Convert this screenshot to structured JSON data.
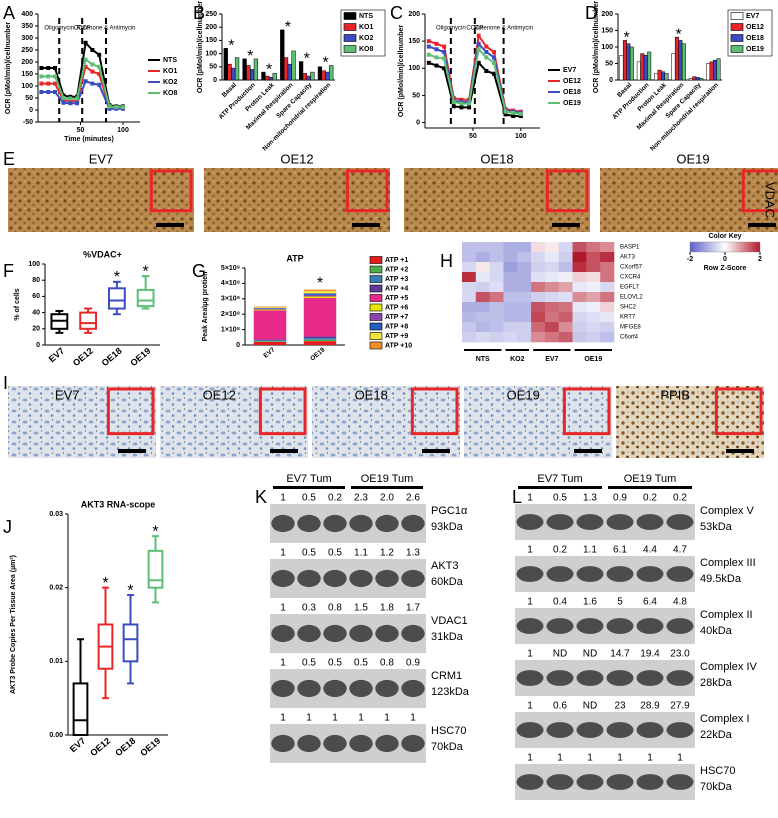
{
  "chart_data": [
    {
      "type": "line",
      "panel": "A",
      "ylabel": "OCR (pMol/min)/cellnumber",
      "xlabel": "Time (minutes)",
      "xlim": [
        0,
        120
      ],
      "xticks": [
        50,
        100
      ],
      "ylim": [
        -50,
        400
      ],
      "yticks": [
        -50,
        0,
        50,
        100,
        150,
        200,
        250,
        300,
        350,
        400
      ],
      "markers": [
        {
          "label": "Oligomycin",
          "x": 25
        },
        {
          "label": "CCCP",
          "x": 52
        },
        {
          "label": "Rotenone & Antimycin",
          "x": 80
        }
      ],
      "x": [
        4,
        12,
        20,
        30,
        38,
        46,
        56,
        64,
        72,
        84,
        92,
        100
      ],
      "series": [
        {
          "name": "NTS",
          "color": "#000000",
          "values": [
            175,
            175,
            175,
            60,
            55,
            55,
            280,
            250,
            230,
            20,
            15,
            15
          ]
        },
        {
          "name": "KO1",
          "color": "#e8262a",
          "values": [
            110,
            110,
            110,
            40,
            38,
            38,
            180,
            160,
            150,
            10,
            8,
            8
          ]
        },
        {
          "name": "KO2",
          "color": "#3b4cc0",
          "values": [
            75,
            75,
            75,
            30,
            28,
            28,
            120,
            110,
            105,
            5,
            5,
            5
          ]
        },
        {
          "name": "KO8",
          "color": "#5dbf73",
          "values": [
            140,
            140,
            140,
            50,
            48,
            48,
            210,
            190,
            180,
            15,
            12,
            12
          ]
        }
      ]
    },
    {
      "type": "bar",
      "panel": "B",
      "ylabel": "OCR (pMol/min)/cellnumber",
      "ylim": [
        0,
        250
      ],
      "yticks": [
        0,
        50,
        100,
        150,
        200,
        250
      ],
      "categories": [
        "Basal",
        "ATP Production",
        "Proton Leak",
        "Maximal Respiration",
        "Spare Capacity",
        "Non-mitochondrial respiration"
      ],
      "stars": [
        "*",
        "*",
        "*",
        "*",
        "*",
        "*"
      ],
      "series": [
        {
          "name": "NTS",
          "color": "#000000",
          "values": [
            120,
            80,
            30,
            190,
            70,
            50
          ]
        },
        {
          "name": "KO1",
          "color": "#e8262a",
          "values": [
            60,
            55,
            15,
            85,
            25,
            35
          ]
        },
        {
          "name": "KO2",
          "color": "#3b4cc0",
          "values": [
            45,
            40,
            10,
            60,
            15,
            30
          ]
        },
        {
          "name": "KO8",
          "color": "#5dbf73",
          "values": [
            85,
            80,
            25,
            110,
            30,
            55
          ]
        }
      ]
    },
    {
      "type": "line",
      "panel": "C",
      "ylabel": "OCR (pMol/min)/cellnumber",
      "xlim": [
        0,
        120
      ],
      "xticks": [
        50,
        100
      ],
      "ylim": [
        -10,
        200
      ],
      "yticks": [
        0,
        50,
        100,
        150,
        200
      ],
      "markers": [
        {
          "label": "Oligomycin",
          "x": 27
        },
        {
          "label": "CCCP",
          "x": 52
        },
        {
          "label": "Rotenone & Antimycin",
          "x": 82
        }
      ],
      "x": [
        4,
        12,
        20,
        30,
        38,
        46,
        56,
        64,
        72,
        84,
        92,
        100
      ],
      "series": [
        {
          "name": "EV7",
          "color": "#000000",
          "values": [
            110,
            105,
            100,
            30,
            28,
            28,
            110,
            95,
            90,
            15,
            12,
            12
          ]
        },
        {
          "name": "OE12",
          "color": "#e8262a",
          "values": [
            150,
            145,
            140,
            45,
            42,
            42,
            160,
            140,
            130,
            25,
            22,
            20
          ]
        },
        {
          "name": "OE18",
          "color": "#3b4cc0",
          "values": [
            140,
            135,
            130,
            40,
            38,
            38,
            145,
            130,
            120,
            22,
            20,
            18
          ]
        },
        {
          "name": "OE19",
          "color": "#5dbf73",
          "values": [
            125,
            120,
            118,
            38,
            35,
            35,
            135,
            120,
            110,
            20,
            18,
            16
          ]
        }
      ]
    },
    {
      "type": "bar",
      "panel": "D",
      "ylabel": "OCR (pMol/min)/cellnumber",
      "ylim": [
        0,
        200
      ],
      "yticks": [
        0,
        50,
        100,
        150,
        200
      ],
      "categories": [
        "Basal",
        "ATP Production",
        "Proton Leak",
        "Maximal Respiration",
        "Spare Capacity",
        "Non-mitochondrial respiration"
      ],
      "stars": [
        "*",
        null,
        null,
        "*",
        null,
        null
      ],
      "series": [
        {
          "name": "EV7",
          "color": "#ffffff",
          "values": [
            75,
            55,
            20,
            80,
            5,
            50
          ]
        },
        {
          "name": "OE12",
          "color": "#e8262a",
          "values": [
            120,
            80,
            30,
            130,
            10,
            55
          ]
        },
        {
          "name": "OE18",
          "color": "#3b4cc0",
          "values": [
            110,
            75,
            25,
            120,
            8,
            60
          ]
        },
        {
          "name": "OE19",
          "color": "#5dbf73",
          "values": [
            100,
            85,
            20,
            110,
            5,
            65
          ]
        }
      ]
    },
    {
      "type": "box",
      "panel": "F",
      "title": "%VDAC+",
      "ylabel": "% of cells",
      "ylim": [
        0,
        100
      ],
      "yticks": [
        0,
        20,
        40,
        60,
        80,
        100
      ],
      "categories": [
        "EV7",
        "OE12",
        "OE18",
        "OE19"
      ],
      "colors": [
        "#000000",
        "#e8262a",
        "#3b4cc0",
        "#5dbf73"
      ],
      "stars": [
        null,
        null,
        "*",
        "*"
      ],
      "boxes": [
        {
          "min": 15,
          "q1": 20,
          "median": 30,
          "q3": 38,
          "max": 42
        },
        {
          "min": 15,
          "q1": 20,
          "median": 27,
          "q3": 40,
          "max": 45
        },
        {
          "min": 38,
          "q1": 45,
          "median": 55,
          "q3": 70,
          "max": 78
        },
        {
          "min": 45,
          "q1": 48,
          "median": 55,
          "q3": 68,
          "max": 85
        }
      ]
    },
    {
      "type": "stacked",
      "panel": "G",
      "title": "ATP",
      "ylabel": "Peak Area\\μg protien",
      "ylim": [
        0,
        500000000
      ],
      "yticks": [
        0,
        {
          "value": 100000000,
          "label": "1×10⁸"
        },
        {
          "value": 200000000,
          "label": "2×10⁸"
        },
        {
          "value": 300000000,
          "label": "3×10⁸"
        },
        {
          "value": 400000000,
          "label": "4×10⁸"
        },
        {
          "value": 500000000,
          "label": "5×10⁸"
        }
      ],
      "categories": [
        "EV7",
        "OE19"
      ],
      "stars": [
        null,
        "*"
      ],
      "series": [
        {
          "name": "ATP +1",
          "color": "#e41a1c",
          "values": [
            20000000,
            25000000
          ]
        },
        {
          "name": "ATP +2",
          "color": "#4daf4a",
          "values": [
            5000000,
            10000000
          ]
        },
        {
          "name": "ATP +3",
          "color": "#377eb8",
          "values": [
            5000000,
            10000000
          ]
        },
        {
          "name": "ATP +4",
          "color": "#5e3c99",
          "values": [
            5000000,
            10000000
          ]
        },
        {
          "name": "ATP +5",
          "color": "#e7298a",
          "values": [
            190000000,
            250000000
          ]
        },
        {
          "name": "ATP +6",
          "color": "#e6e600",
          "values": [
            5000000,
            10000000
          ]
        },
        {
          "name": "ATP +7",
          "color": "#8e44ad",
          "values": [
            5000000,
            10000000
          ]
        },
        {
          "name": "ATP +8",
          "color": "#1f5fbf",
          "values": [
            5000000,
            10000000
          ]
        },
        {
          "name": "ATP +9",
          "color": "#f0e442",
          "values": [
            5000000,
            15000000
          ]
        },
        {
          "name": "ATP +10",
          "color": "#f28e2b",
          "values": [
            5000000,
            10000000
          ]
        }
      ]
    },
    {
      "type": "heatmap",
      "panel": "H",
      "key_title": "Color Key",
      "key_label": "Row Z-Score",
      "zlim": [
        -2,
        2
      ],
      "zticks": [
        -2,
        0,
        2
      ],
      "colors": [
        "#5b5fc7",
        "#ffffff",
        "#b2182b"
      ],
      "rows": [
        "BASP1",
        "AKT3",
        "CXorf57",
        "CXCR4",
        "EGFL7",
        "ELOVL2",
        "SHC2",
        "KRT7",
        "MFGE8",
        "C6orf4"
      ],
      "columns": [
        "NTS",
        "NTS",
        "NTS",
        "KO2",
        "KO2",
        "EV7",
        "EV7",
        "EV7",
        "OE19",
        "OE19",
        "OE19"
      ],
      "values": [
        [
          -0.8,
          -0.8,
          -0.8,
          -1,
          -1,
          0.3,
          0.2,
          -0.5,
          1.5,
          1.2,
          1.0
        ],
        [
          -0.8,
          -1,
          -0.8,
          -1,
          -0.8,
          -0.5,
          -0.3,
          -0.6,
          2,
          1.5,
          1.8
        ],
        [
          -0.5,
          0.2,
          -0.5,
          -1.2,
          -1,
          -0.6,
          -0.5,
          -0.8,
          1.8,
          1.5,
          1.2
        ],
        [
          1.8,
          -0.3,
          -0.5,
          -1,
          -1,
          -0.4,
          -0.3,
          -0.2,
          0.4,
          0.3,
          1.2
        ],
        [
          -0.5,
          -0.6,
          -0.4,
          -1,
          -1,
          1.2,
          1.0,
          0.8,
          -0.3,
          -0.2,
          -0.5
        ],
        [
          -0.5,
          1.5,
          1.2,
          -0.8,
          -0.8,
          -0.6,
          -0.5,
          -0.4,
          1.0,
          0.8,
          1.2
        ],
        [
          -1,
          -1,
          -0.8,
          -0.9,
          -0.9,
          1.5,
          1.3,
          1.2,
          -0.3,
          -0.2,
          0.4
        ],
        [
          -0.9,
          -0.8,
          -0.8,
          -0.9,
          -0.9,
          1.6,
          1.2,
          1.4,
          -0.5,
          -0.4,
          -0.3
        ],
        [
          -0.7,
          -0.9,
          -0.8,
          -0.6,
          -0.6,
          1.3,
          1.6,
          1.0,
          -0.6,
          -0.5,
          -0.6
        ],
        [
          -0.6,
          -0.5,
          -0.6,
          -0.5,
          -0.6,
          1.0,
          1.2,
          1.4,
          -0.7,
          -0.6,
          -0.8
        ]
      ]
    },
    {
      "type": "box",
      "panel": "J",
      "title": "AKT3 RNA-scope",
      "ylabel": "AKT3 Probe Copies Per Tissue Area (µm²)",
      "ylim": [
        0,
        0.03
      ],
      "yticks": [
        {
          "value": 0,
          "label": "0.00"
        },
        {
          "value": 0.01,
          "label": "0.01"
        },
        {
          "value": 0.02,
          "label": "0.02"
        },
        {
          "value": 0.03,
          "label": "0.03"
        }
      ],
      "categories": [
        "EV7",
        "OE12",
        "OE18",
        "OE19"
      ],
      "colors": [
        "#000000",
        "#e8262a",
        "#3b4cc0",
        "#5dbf73"
      ],
      "stars": [
        null,
        "*",
        "*",
        "*"
      ],
      "boxes": [
        {
          "min": 0,
          "q1": 0,
          "median": 0.002,
          "q3": 0.007,
          "max": 0.013
        },
        {
          "min": 0.005,
          "q1": 0.009,
          "median": 0.012,
          "q3": 0.015,
          "max": 0.02
        },
        {
          "min": 0.007,
          "q1": 0.01,
          "median": 0.013,
          "q3": 0.015,
          "max": 0.019
        },
        {
          "min": 0.018,
          "q1": 0.02,
          "median": 0.021,
          "q3": 0.025,
          "max": 0.027
        }
      ]
    }
  ],
  "panels": {
    "E": {
      "panel": "E",
      "images": [
        "EV7",
        "OE12",
        "OE18",
        "OE19"
      ],
      "stain": "VDAC"
    },
    "I": {
      "panel": "I",
      "images": [
        "EV7",
        "OE12",
        "OE18",
        "OE19",
        "PPIB"
      ]
    },
    "K": {
      "panel": "K",
      "groups": [
        "EV7 Tum",
        "OE19 Tum"
      ],
      "rows": [
        {
          "name": "PGC1α",
          "size": "93kDa",
          "values": [
            "1",
            "0.5",
            "0.2",
            "2.3",
            "2.0",
            "2.6"
          ]
        },
        {
          "name": "AKT3",
          "size": "60kDa",
          "values": [
            "1",
            "0.5",
            "0.5",
            "1.1",
            "1.2",
            "1.3"
          ]
        },
        {
          "name": "VDAC1",
          "size": "31kDa",
          "values": [
            "1",
            "0.3",
            "0.8",
            "1.5",
            "1.8",
            "1.7"
          ]
        },
        {
          "name": "CRM1",
          "size": "123kDa",
          "values": [
            "1",
            "0.5",
            "0.5",
            "0.5",
            "0.8",
            "0.9"
          ]
        },
        {
          "name": "HSC70",
          "size": "70kDa",
          "values": [
            "1",
            "1",
            "1",
            "1",
            "1",
            "1"
          ]
        }
      ]
    },
    "L": {
      "panel": "L",
      "groups": [
        "EV7 Tum",
        "OE19 Tum"
      ],
      "rows": [
        {
          "name": "Complex V",
          "size": "53kDa",
          "values": [
            "1",
            "0.5",
            "1.3",
            "0.9",
            "0.2",
            "0.2"
          ]
        },
        {
          "name": "Complex III",
          "size": "49.5kDa",
          "values": [
            "1",
            "0.2",
            "1.1",
            "6.1",
            "4.4",
            "4.7"
          ]
        },
        {
          "name": "Complex II",
          "size": "40kDa",
          "values": [
            "1",
            "0.4",
            "1.6",
            "5",
            "6.4",
            "4.8"
          ]
        },
        {
          "name": "Complex IV",
          "size": "28kDa",
          "color": "#e8262a",
          "values": [
            "1",
            "ND",
            "ND",
            "14.7",
            "19.4",
            "23.0"
          ]
        },
        {
          "name": "Complex I",
          "size": "22kDa",
          "color": "#2aa6d6",
          "values": [
            "1",
            "0.6",
            "ND",
            "23",
            "28.9",
            "27.9"
          ]
        },
        {
          "name": "HSC70",
          "size": "70kDa",
          "values": [
            "1",
            "1",
            "1",
            "1",
            "1",
            "1"
          ]
        }
      ]
    }
  }
}
